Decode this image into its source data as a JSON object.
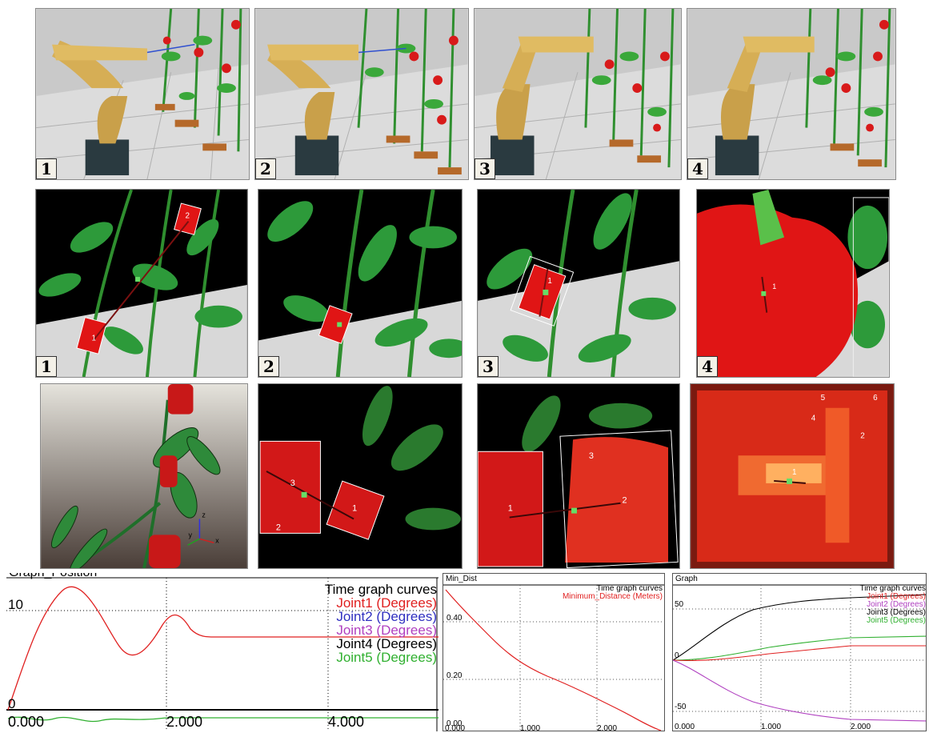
{
  "panel_labels": {
    "top": [
      "1",
      "2",
      "3",
      "4"
    ],
    "middle": [
      "1",
      "2",
      "3",
      "4"
    ]
  },
  "scene_marks": {
    "row2_p1": [
      "1",
      "2"
    ],
    "row2_p3": [
      "1"
    ],
    "row2_p4": [
      "1"
    ],
    "row3_p2": [
      "3",
      "1",
      "2"
    ],
    "row3_p3": [
      "1",
      "2",
      "3"
    ],
    "row3_p4": [
      "5",
      "6",
      "4",
      "2",
      "1"
    ],
    "axis_triad": [
      "z",
      "y",
      "x"
    ]
  },
  "graphs": {
    "position": {
      "title": "Graph_Position",
      "legend_title": "Time graph curves",
      "legend": [
        {
          "label": "Joint1 (Degrees)",
          "color": "#e02020"
        },
        {
          "label": "Joint2 (Degrees)",
          "color": "#3030c0"
        },
        {
          "label": "Joint3 (Degrees)",
          "color": "#b040c0"
        },
        {
          "label": "Joint4 (Degrees)",
          "color": "#000000"
        },
        {
          "label": "Joint5 (Degrees)",
          "color": "#30b030"
        }
      ],
      "y_ticks": [
        "10",
        "0"
      ],
      "x_ticks": [
        "0.000",
        "2.000",
        "4.000"
      ]
    },
    "min_dist": {
      "title": "Min_Dist",
      "legend_title": "Time graph curves",
      "legend": [
        {
          "label": "Minimum_Distance (Meters)",
          "color": "#e02020"
        }
      ],
      "y_ticks": [
        "0.40",
        "0.20",
        "0.00"
      ],
      "x_ticks": [
        "0.000",
        "1.000",
        "2.000"
      ]
    },
    "joint_graph": {
      "title": "Graph",
      "legend_title": "Time graph curves",
      "legend": [
        {
          "label": "Joint1 (Degrees)",
          "color": "#e02020"
        },
        {
          "label": "Joint2 (Degrees)",
          "color": "#b040c0"
        },
        {
          "label": "Joint3 (Degrees)",
          "color": "#000000"
        },
        {
          "label": "Joint5 (Degrees)",
          "color": "#30b030"
        }
      ],
      "y_ticks": [
        "50",
        "0",
        "-50"
      ],
      "x_ticks": [
        "0.000",
        "1.000",
        "2.000"
      ]
    }
  }
}
